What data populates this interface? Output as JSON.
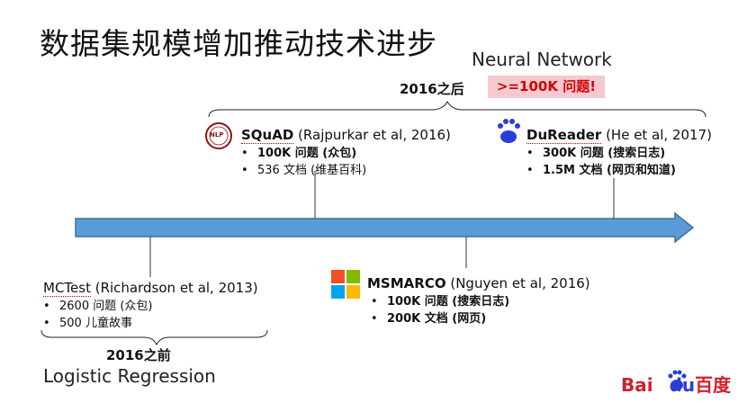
{
  "title": "数据集规模增加推动技术进步",
  "top_annotation": {
    "model_label": "Neural Network",
    "period_label": "2016之后",
    "badge": ">=100K 问题!"
  },
  "bottom_annotation": {
    "period_label": "2016之前",
    "model_label": "Logistic Regression"
  },
  "datasets": {
    "squad": {
      "name": "SQuAD",
      "citation": " (Rajpurkar et al, 2016)",
      "logo_text": "NLP",
      "bullets": [
        "100K 问题 (众包)",
        "536 文档 (维基百科)"
      ]
    },
    "dureader": {
      "name": "DuReader",
      "citation": " (He et al, 2017)",
      "bullets": [
        "300K 问题 (搜索日志)",
        "1.5M 文档 (网页和知道)"
      ]
    },
    "mctest": {
      "name": "MCTest",
      "citation": " (Richardson et al, 2013)",
      "bullets": [
        "2600 问题 (众包)",
        "500 儿童故事"
      ]
    },
    "msmarco": {
      "name": "MSMARCO",
      "citation": " (Nguyen et al, 2016)",
      "bullets": [
        "100K 问题 (搜索日志)",
        "200K 文档 (网页)"
      ]
    }
  },
  "footer_logo": {
    "part1": "Bai",
    "part2": "du",
    "part3": "百度"
  },
  "colors": {
    "arrow": "#5b9bd5",
    "arrow_edge": "#41719c",
    "badge_bg": "#f6c9cf",
    "badge_text": "#d40000"
  }
}
